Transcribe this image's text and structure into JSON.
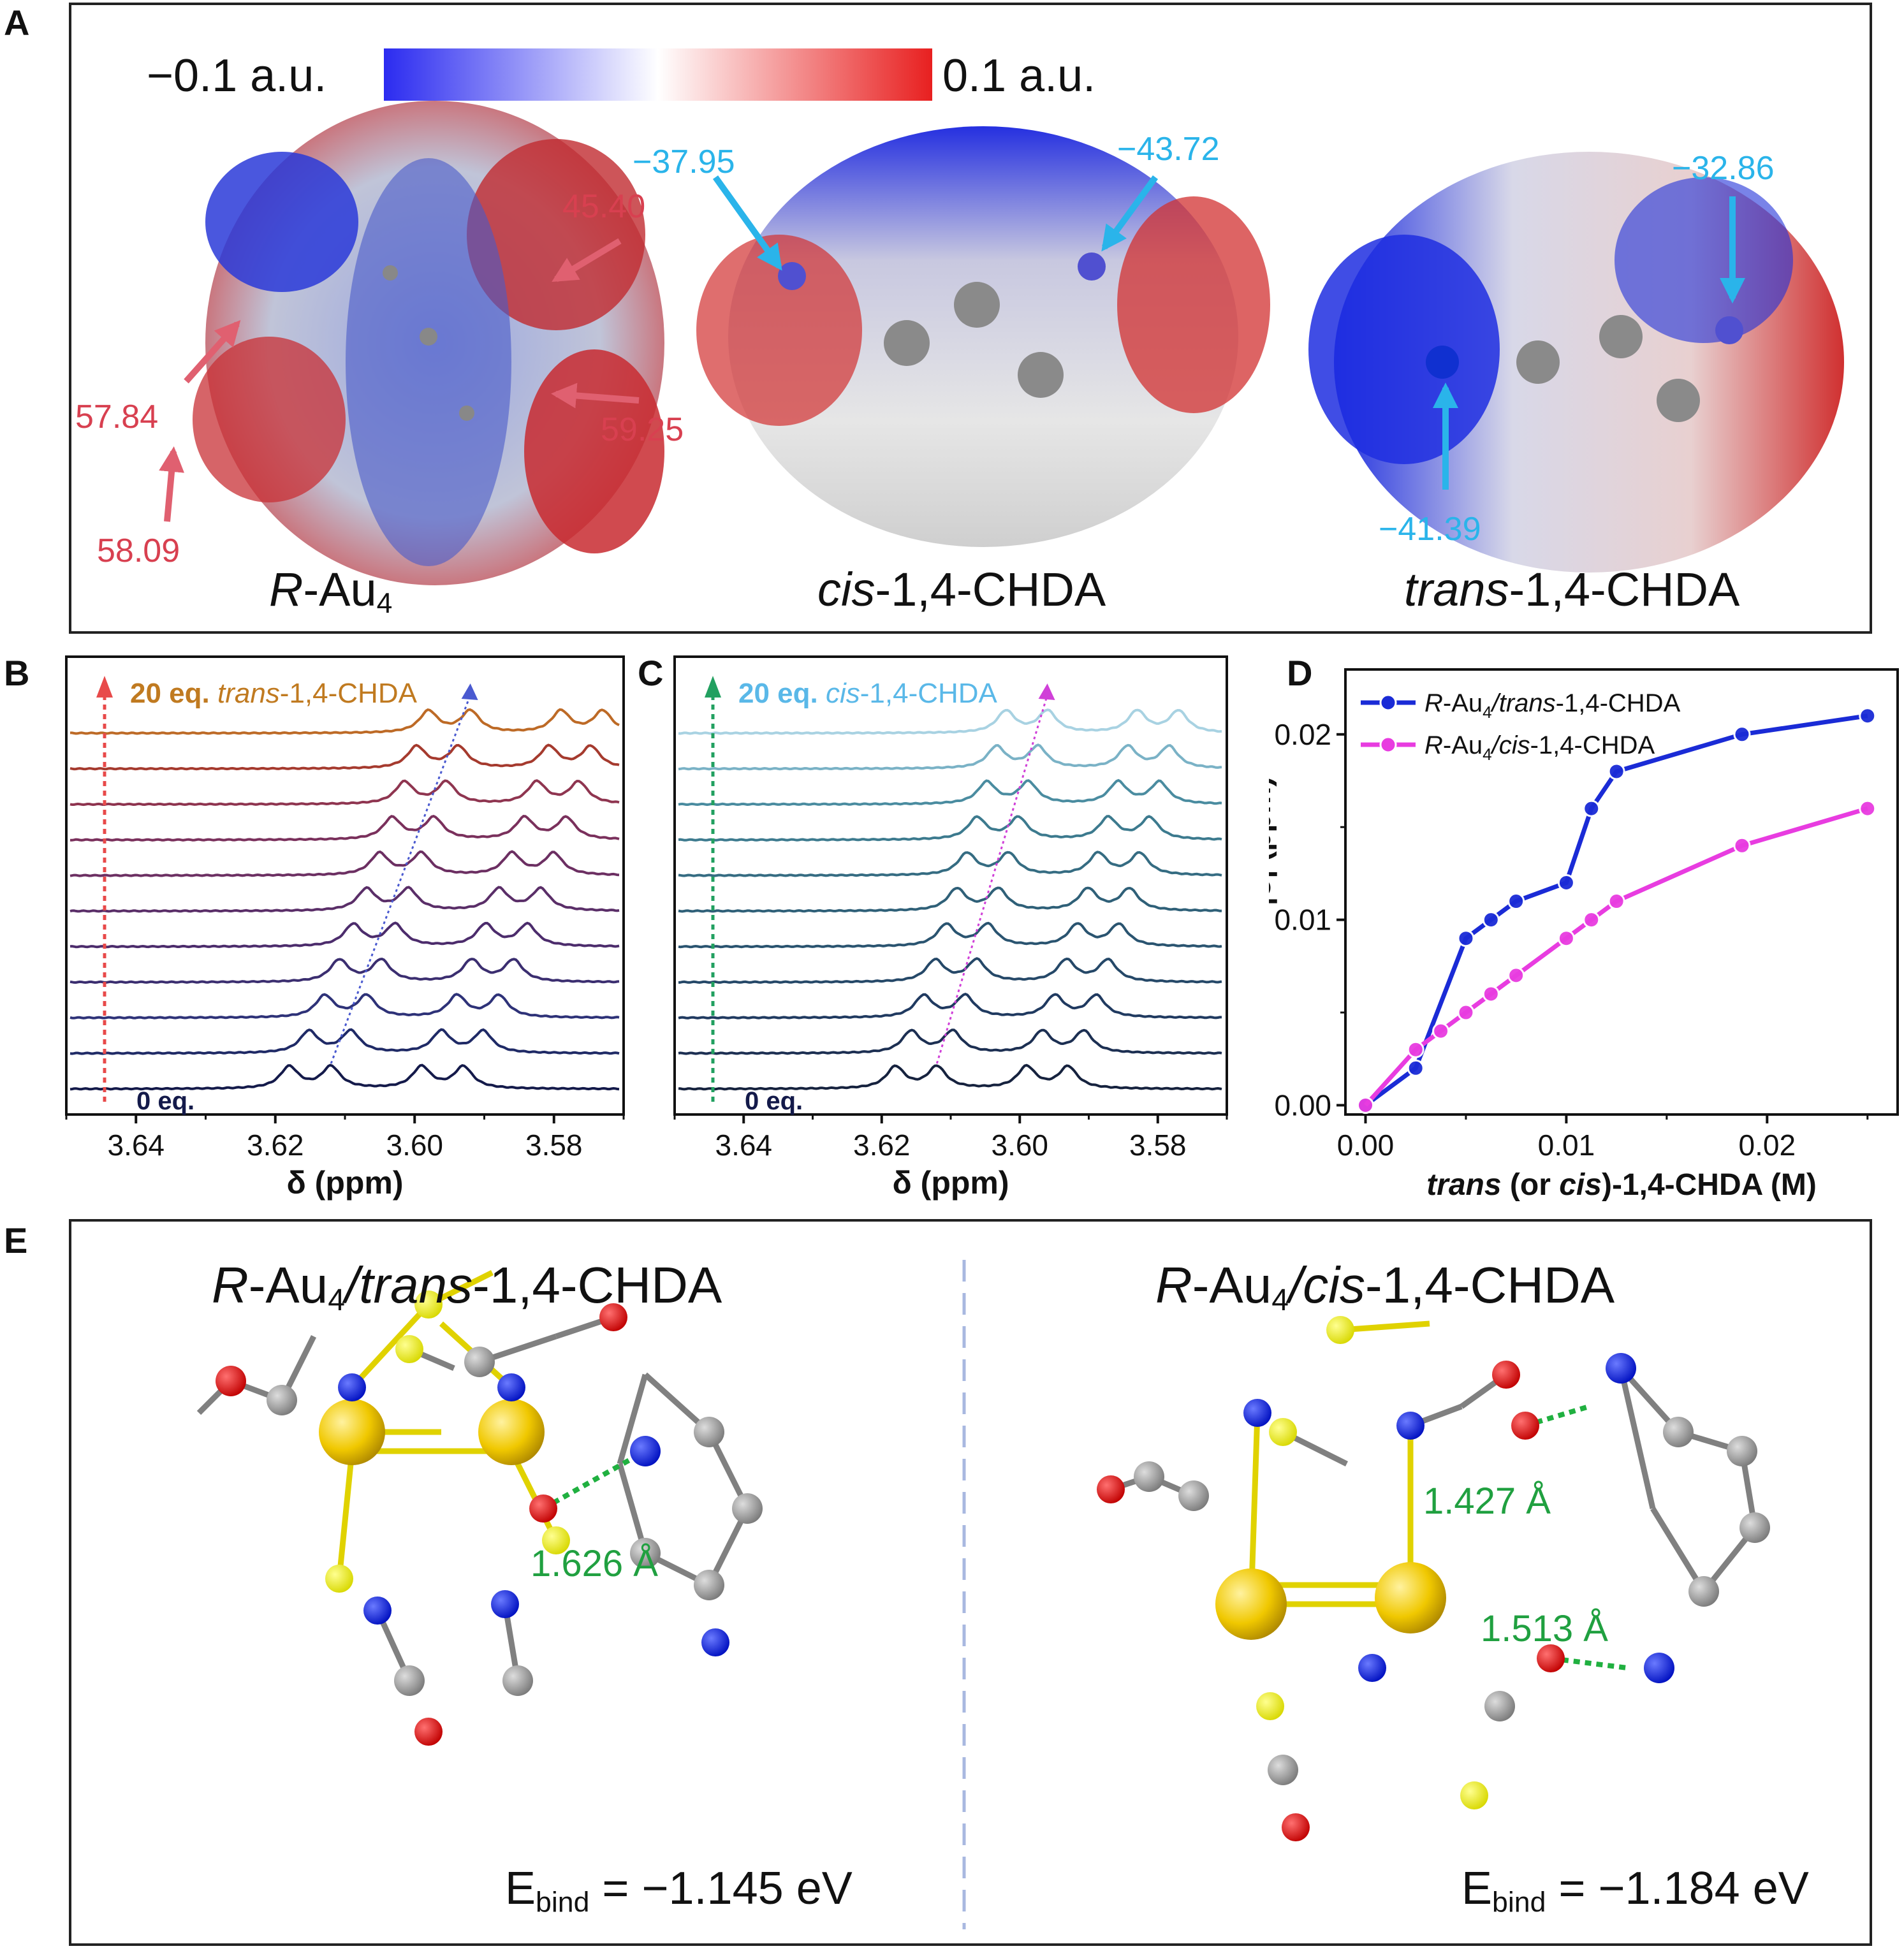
{
  "panel_labels": {
    "A": "A",
    "B": "B",
    "C": "C",
    "D": "D",
    "E": "E"
  },
  "panelA": {
    "colorbar": {
      "min_label": "−0.1 a.u.",
      "max_label": "0.1 a.u.",
      "color_min": "#2b2bf0",
      "color_mid": "#ffffff",
      "color_max": "#e82020"
    },
    "molecules": [
      {
        "name_italic": "R",
        "name_rest": "-Au",
        "name_sub": "4",
        "values": [
          "45.40",
          "57.84",
          "59.25",
          "58.09"
        ],
        "value_color": "#d84050"
      },
      {
        "name_italic": "cis",
        "name_rest": "-1,4-CHDA",
        "name_sub": "",
        "values": [
          "−37.95",
          "−43.72"
        ],
        "value_color": "#2ab4ea"
      },
      {
        "name_italic": "trans",
        "name_rest": "-1,4-CHDA",
        "name_sub": "",
        "values": [
          "−32.86",
          "−41.39"
        ],
        "value_color": "#2ab4ea"
      }
    ]
  },
  "chart_data": [
    {
      "panel": "B",
      "type": "line",
      "title_bold": "20 eq.",
      "title_italic": "trans",
      "title_rest": "-1,4-CHDA",
      "bottom_label": "0 eq.",
      "xlabel": "δ (ppm)",
      "xlim": [
        3.65,
        3.57
      ],
      "xticks": [
        "3.64",
        "3.62",
        "3.60",
        "3.58"
      ],
      "traces": 11,
      "peak_positions_first": [
        3.618,
        3.612,
        3.599,
        3.593
      ],
      "peak_shift_last": 0.02,
      "title_color": "#c07a20",
      "colors": [
        "#141a4a",
        "#1f2a66",
        "#2e3278",
        "#3b2e70",
        "#4c2c6c",
        "#5a2e68",
        "#6c2f62",
        "#7a305c",
        "#8f3550",
        "#a53a2e",
        "#bd6a26"
      ]
    },
    {
      "panel": "C",
      "type": "line",
      "title_bold": "20 eq.",
      "title_italic": "cis",
      "title_rest": "-1,4-CHDA",
      "bottom_label": "0 eq.",
      "xlabel": "δ (ppm)",
      "xlim": [
        3.65,
        3.57
      ],
      "xticks": [
        "3.64",
        "3.62",
        "3.60",
        "3.58"
      ],
      "traces": 11,
      "peak_positions_first": [
        3.618,
        3.612,
        3.599,
        3.593
      ],
      "peak_shift_last": 0.016,
      "title_color": "#5ab8e8",
      "colors": [
        "#16223e",
        "#1c2f52",
        "#203a60",
        "#254868",
        "#2a5470",
        "#2f6078",
        "#356c82",
        "#3c7a8e",
        "#4a8ca0",
        "#7ab2c6",
        "#a8d2e2"
      ]
    },
    {
      "panel": "D",
      "type": "line",
      "xlabel_italic_1": "trans",
      "xlabel_mid": " (or ",
      "xlabel_italic_2": "cis",
      "xlabel_end": ")-1,4-CHDA (M)",
      "ylabel": "|δ| (ppm)",
      "xlim": [
        -0.001,
        0.0265
      ],
      "ylim": [
        -0.0005,
        0.0235
      ],
      "xticks": [
        0.0,
        0.01,
        0.02
      ],
      "xtick_labels": [
        "0.00",
        "0.01",
        "0.02"
      ],
      "yticks": [
        0.0,
        0.01,
        0.02
      ],
      "ytick_labels": [
        "0.00",
        "0.01",
        "0.02"
      ],
      "series": [
        {
          "legend_italic": "R",
          "legend_mid": "-Au",
          "legend_sub": "4",
          "legend_italic2": "/trans",
          "legend_end": "-1,4-CHDA",
          "color": "#1a2bd6",
          "x": [
            0.0,
            0.0025,
            0.005,
            0.00625,
            0.0075,
            0.01,
            0.01125,
            0.0125,
            0.01875,
            0.025
          ],
          "y": [
            0.0,
            0.002,
            0.009,
            0.01,
            0.011,
            0.012,
            0.016,
            0.018,
            0.02,
            0.021
          ]
        },
        {
          "legend_italic": "R",
          "legend_mid": "-Au",
          "legend_sub": "4",
          "legend_italic2": "/cis",
          "legend_end": "-1,4-CHDA",
          "color": "#e83ce0",
          "x": [
            0.0,
            0.0025,
            0.00375,
            0.005,
            0.00625,
            0.0075,
            0.01,
            0.01125,
            0.0125,
            0.01875,
            0.025
          ],
          "y": [
            0.0,
            0.003,
            0.004,
            0.005,
            0.006,
            0.007,
            0.009,
            0.01,
            0.011,
            0.014,
            0.016
          ]
        }
      ]
    }
  ],
  "panelE": {
    "left": {
      "title_italic": "R",
      "title_mid": "-Au",
      "title_sub": "4",
      "title_italic2": "/trans",
      "title_end": "-1,4-CHDA",
      "hbonds": [
        "1.626 Å"
      ],
      "ebind_pre": "E",
      "ebind_sub": "bind",
      "ebind_val": " = −1.145 eV"
    },
    "right": {
      "title_italic": "R",
      "title_mid": "-Au",
      "title_sub": "4",
      "title_italic2": "/cis",
      "title_end": "-1,4-CHDA",
      "hbonds": [
        "1.427 Å",
        "1.513 Å"
      ],
      "ebind_pre": "E",
      "ebind_sub": "bind",
      "ebind_val": " = −1.184 eV"
    },
    "hbond_color": "#20a040"
  }
}
